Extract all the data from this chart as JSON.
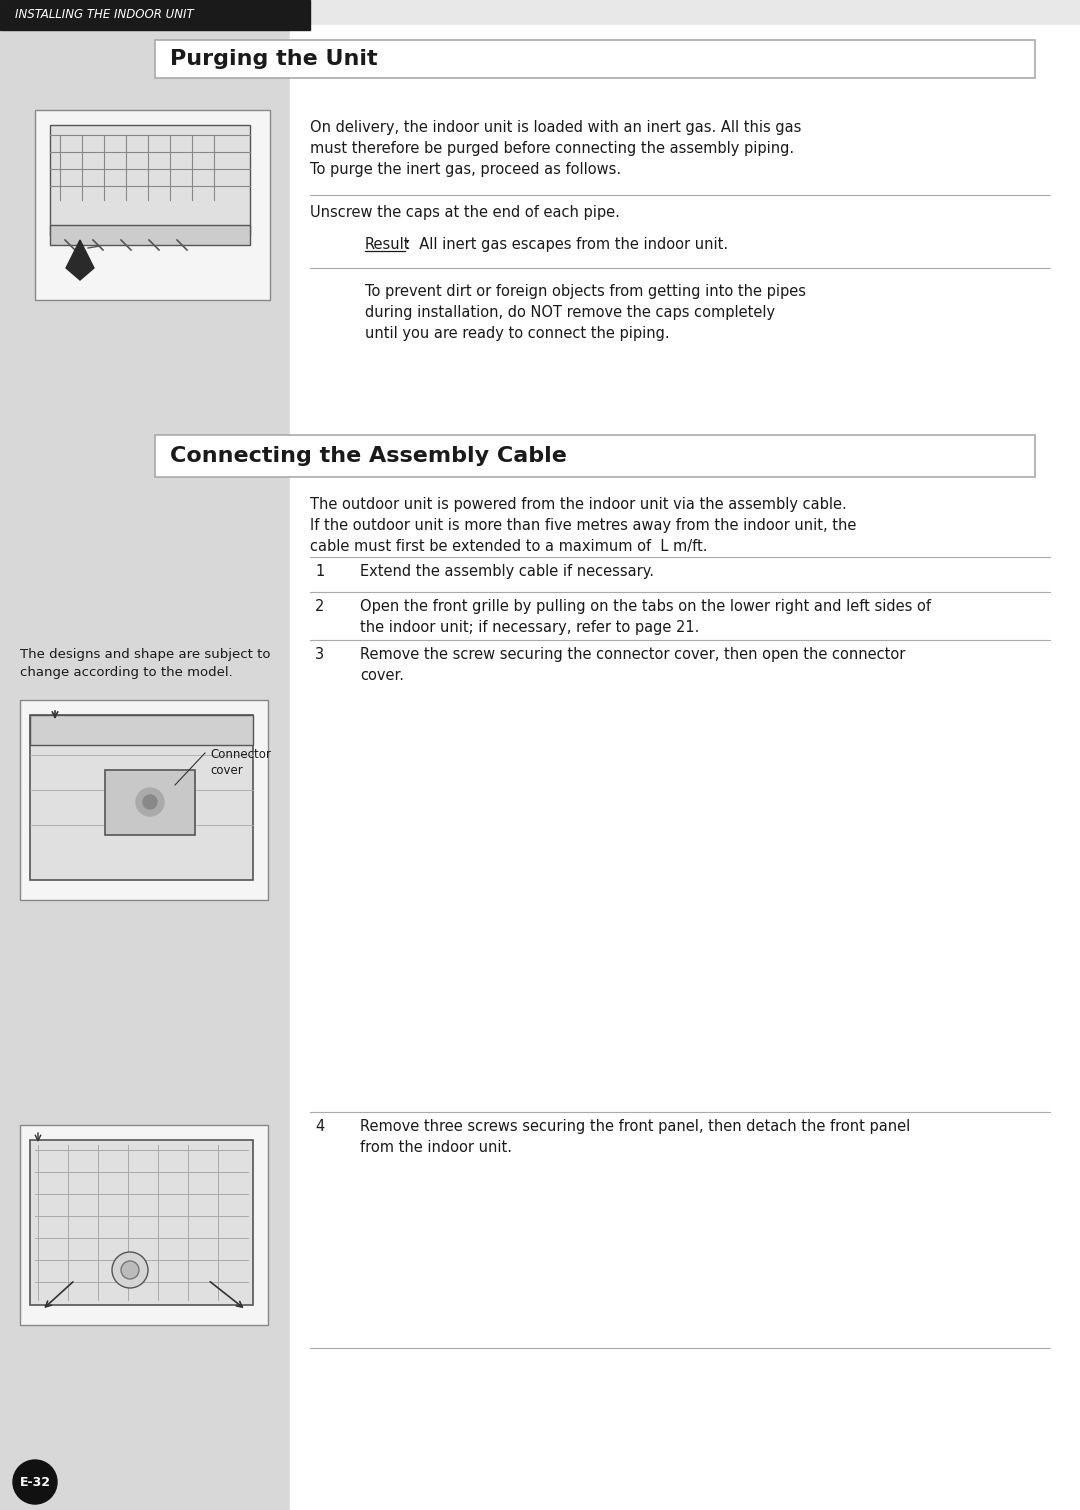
{
  "bg_color": "#e8e8e8",
  "white_bg": "#ffffff",
  "header_bg": "#1a1a1a",
  "header_text": "INSTALLING THE INDOOR UNIT",
  "header_text_color": "#ffffff",
  "section1_title": "Purging the Unit",
  "section2_title": "Connecting the Assembly Cable",
  "left_panel_color": "#d8d8d8",
  "box_border_color": "#aaaaaa",
  "text_color": "#1a1a1a",
  "line_color": "#aaaaaa",
  "page_num": "E-32",
  "para1": "On delivery, the indoor unit is loaded with an inert gas. All this gas\nmust therefore be purged before connecting the assembly piping.\nTo purge the inert gas, proceed as follows.",
  "para2": "Unscrew the caps at the end of each pipe.",
  "para3_label": "Result",
  "para3_text": ":  All inert gas escapes from the indoor unit.",
  "para4": "To prevent dirt or foreign objects from getting into the pipes\nduring installation, do NOT remove the caps completely\nuntil you are ready to connect the piping.",
  "para_intro2": "The outdoor unit is powered from the indoor unit via the assembly cable.\nIf the outdoor unit is more than five metres away from the indoor unit, the\ncable must first be extended to a maximum of  L m/ft.",
  "step1": "Extend the assembly cable if necessary.",
  "step2": "Open the front grille by pulling on the tabs on the lower right and left sides of\nthe indoor unit; if necessary, refer to page 21.",
  "step3": "Remove the screw securing the connector cover, then open the connector\ncover.",
  "step4": "Remove three screws securing the front panel, then detach the front panel\nfrom the indoor unit.",
  "designs_note": "The designs and shape are subject to\nchange according to the model.",
  "connector_label": "Connector\ncover"
}
